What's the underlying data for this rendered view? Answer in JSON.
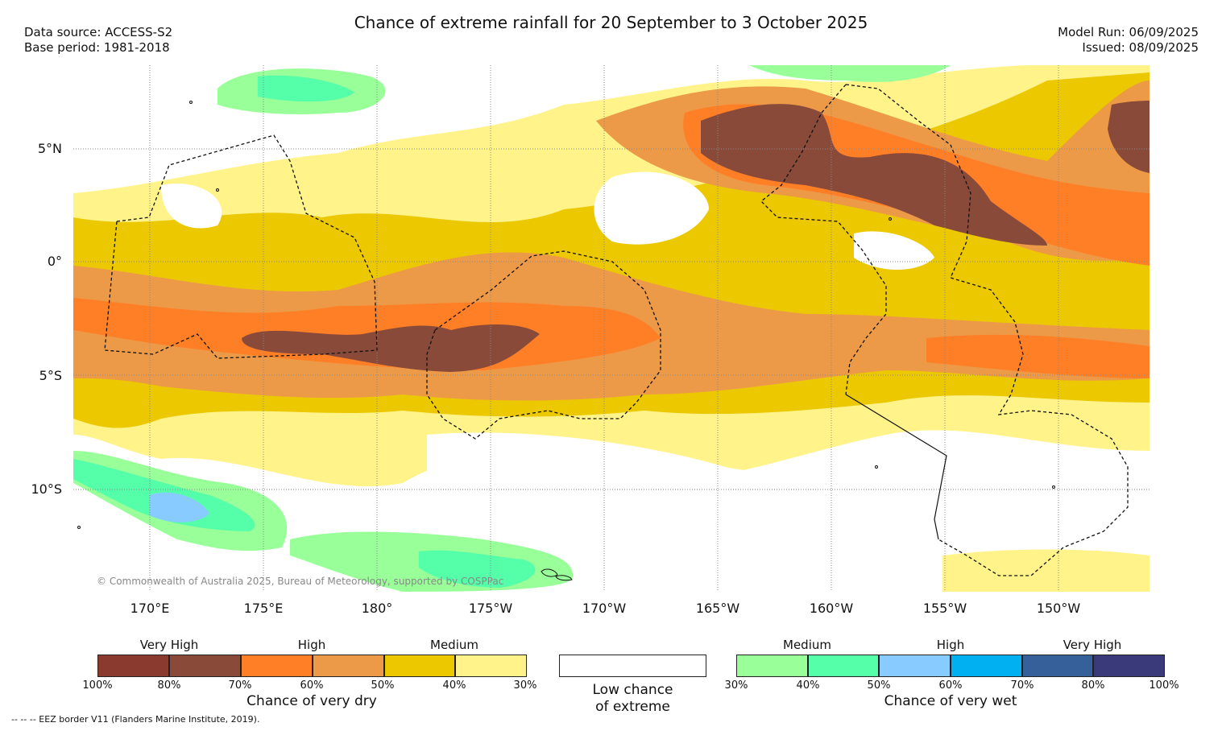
{
  "title": "Chance of extreme rainfall for 20 September to 3 October 2025",
  "meta": {
    "data_source": "Data source: ACCESS-S2",
    "base_period": "Base period: 1981-2018",
    "model_run": "Model Run: 06/09/2025",
    "issued": "Issued: 08/09/2025"
  },
  "map": {
    "lat_labels": [
      "5°N",
      "0°",
      "5°S",
      "10°S"
    ],
    "lon_labels": [
      "170°E",
      "175°E",
      "180°",
      "175°W",
      "170°W",
      "165°W",
      "160°W",
      "155°W",
      "150°W"
    ],
    "copyright": "© Commonwealth of Australia 2025, Bureau of Meteorology, supported by COSPPac"
  },
  "colors": {
    "dry_100_80": "#8b3a2f",
    "dry_80_70": "#8a4a3a",
    "dry_70_60": "#ff7f27",
    "dry_60_50": "#ec9a48",
    "dry_50_40": "#ecc800",
    "dry_40_30": "#fff38a",
    "wet_30_40": "#99ff99",
    "wet_40_50": "#55ffaa",
    "wet_50_60": "#88ccff",
    "wet_60_70": "#00b0f0",
    "wet_70_80": "#35609a",
    "wet_80_100": "#3a3a7a"
  },
  "legend": {
    "dry": {
      "group_labels": [
        "Very High",
        "High",
        "Medium"
      ],
      "ticks": [
        "100%",
        "80%",
        "70%",
        "60%",
        "50%",
        "40%",
        "30%"
      ],
      "title": "Chance of very dry"
    },
    "low": {
      "title_line1": "Low chance",
      "title_line2": "of extreme"
    },
    "wet": {
      "group_labels": [
        "Medium",
        "High",
        "Very High"
      ],
      "ticks": [
        "30%",
        "40%",
        "50%",
        "60%",
        "70%",
        "80%",
        "100%"
      ],
      "title": "Chance of very wet"
    }
  },
  "footnote": "--  --  -- EEZ border V11 (Flanders Marine Institute, 2019)."
}
